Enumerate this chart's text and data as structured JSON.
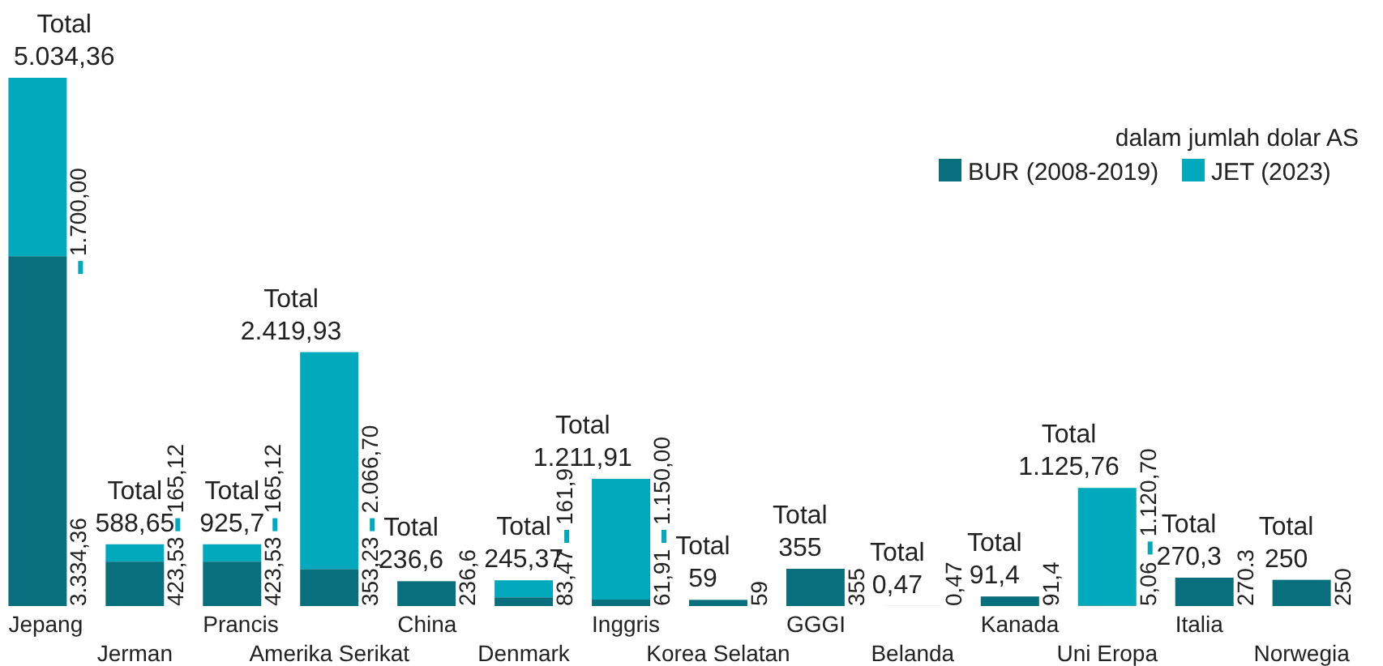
{
  "chart_data": {
    "type": "bar",
    "stacked": true,
    "legend": "top right",
    "legend_title": "dalam jumlah dolar AS",
    "categories": [
      "Jepang",
      "Jerman",
      "Prancis",
      "Amerika Serikat",
      "China",
      "Denmark",
      "Inggris",
      "Korea Selatan",
      "GGGI",
      "Belanda",
      "Kanada",
      "Uni Eropa",
      "Italia",
      "Norwegia"
    ],
    "series": [
      {
        "name": "BUR (2008-2019)",
        "color": "#0a6f7c",
        "values": [
          3334.36,
          423.53,
          423.53,
          353.23,
          236.6,
          83.47,
          61.91,
          59,
          355,
          0.47,
          91.4,
          5.06,
          270.3,
          250
        ],
        "value_labels": [
          "3.334,36",
          "423,53",
          "423,53",
          "353,23",
          "236,6",
          "83,47",
          "61,91",
          "59",
          "355",
          "0,47",
          "91,4",
          "5,06",
          "270.3",
          "250"
        ]
      },
      {
        "name": "JET (2023)",
        "color": "#00a9bb",
        "values": [
          1700,
          165.12,
          165.12,
          2066.7,
          null,
          161.9,
          1150,
          null,
          null,
          null,
          null,
          1120.7,
          null,
          null
        ],
        "value_labels": [
          "1.700,00",
          "165,12",
          "165,12",
          "2.066,70",
          null,
          "161,9",
          "1.150,00",
          null,
          null,
          null,
          null,
          "1.120,70",
          null,
          null
        ]
      }
    ],
    "totals": [
      "Total 5.034,36",
      "Total 588,65",
      "Total 925,7",
      "Total 2.419,93",
      "Total 236,6",
      "Total 245,37",
      "Total 1.211,91",
      "Total 59",
      "Total 355",
      "Total 0,47",
      "Total 91,4",
      "Total 1.125,76",
      "Total 270,3",
      "Total 250"
    ]
  }
}
